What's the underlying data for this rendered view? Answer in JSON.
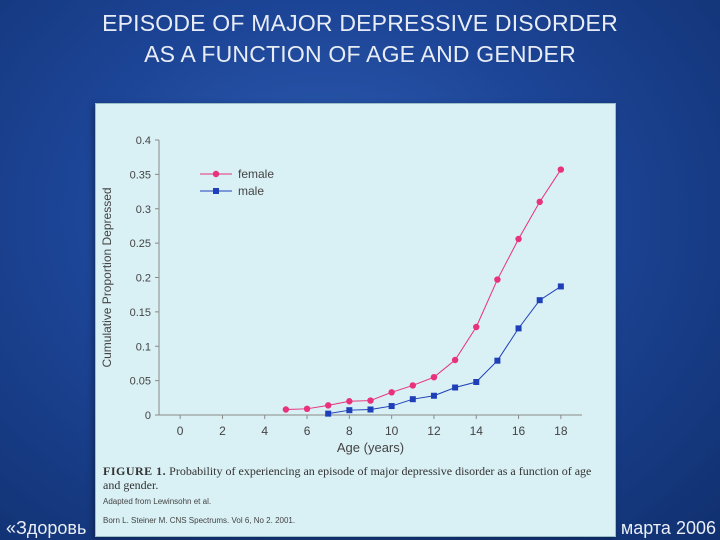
{
  "slide": {
    "title_line1": "EPISODE OF MAJOR DEPRESSIVE DISORDER",
    "title_line2": "AS A FUNCTION OF AGE AND GENDER",
    "footer_left": "«Здоровь",
    "footer_right": "марта 2006"
  },
  "figure": {
    "caption_label": "FIGURE 1.",
    "caption_text": "Probability of experiencing an episode of major depressive disorder as a function of age and gender.",
    "adapted_from": "Adapted from Lewinsohn et al.",
    "citation": "Born L. Steiner M. CNS Spectrums. Vol 6, No 2. 2001."
  },
  "colors": {
    "female": "#e8327c",
    "male": "#1f3fb8",
    "axis": "#8a8a8a",
    "text": "#444444"
  },
  "chart_data": {
    "type": "line",
    "xlabel": "Age (years)",
    "ylabel": "Cumulative Proportion Depressed",
    "xlim": [
      -1,
      19
    ],
    "ylim": [
      0,
      0.4
    ],
    "xticks": [
      0,
      2,
      4,
      6,
      8,
      10,
      12,
      14,
      16,
      18
    ],
    "yticks": [
      0,
      0.05,
      0.1,
      0.15,
      0.2,
      0.25,
      0.3,
      0.35,
      0.4
    ],
    "ytick_labels": [
      "0",
      "0.05",
      "0.1",
      "0.15",
      "0.2",
      "0.25",
      "0.3",
      "0.35",
      "0.4"
    ],
    "legend_position": "top-left",
    "grid": false,
    "series": [
      {
        "name": "female",
        "marker": "circle",
        "x": [
          5,
          6,
          7,
          8,
          9,
          10,
          11,
          12,
          13,
          14,
          15,
          16,
          17,
          18
        ],
        "y": [
          0.008,
          0.009,
          0.014,
          0.02,
          0.021,
          0.033,
          0.043,
          0.055,
          0.08,
          0.128,
          0.197,
          0.256,
          0.31,
          0.357
        ]
      },
      {
        "name": "male",
        "marker": "square",
        "x": [
          7,
          8,
          9,
          10,
          11,
          12,
          13,
          14,
          15,
          16,
          17,
          18
        ],
        "y": [
          0.002,
          0.007,
          0.008,
          0.013,
          0.023,
          0.028,
          0.04,
          0.048,
          0.079,
          0.126,
          0.167,
          0.187
        ]
      }
    ]
  }
}
